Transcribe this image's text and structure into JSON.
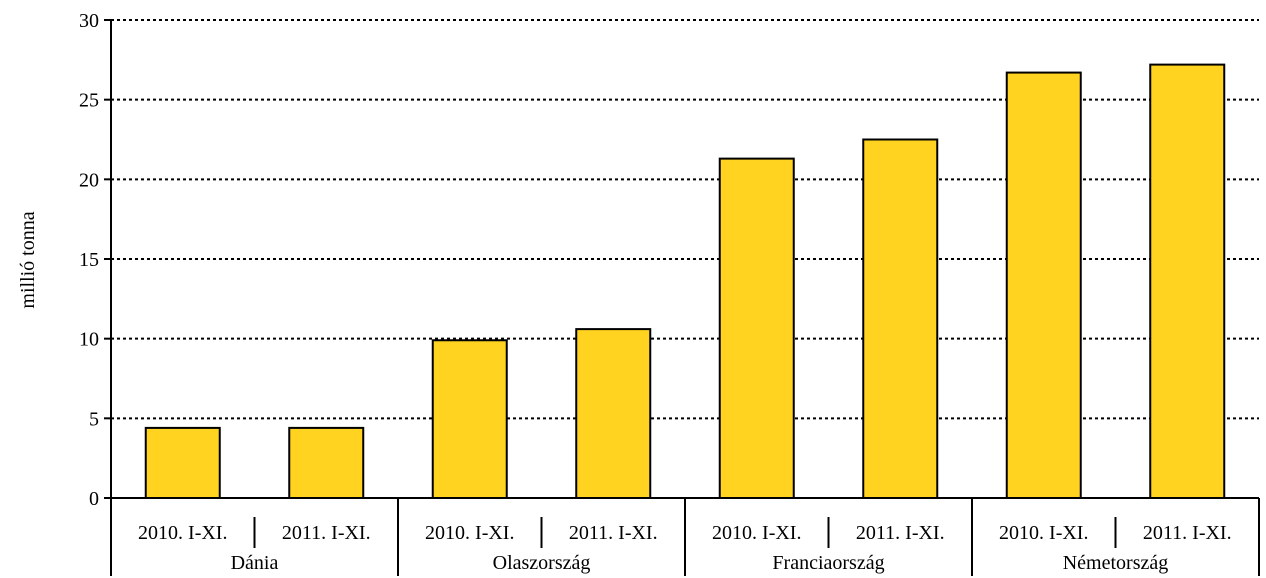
{
  "chart_data": {
    "type": "bar",
    "ylabel": "millió tonna",
    "ylim": [
      0,
      30
    ],
    "yticks": [
      0,
      5,
      10,
      15,
      20,
      25,
      30
    ],
    "grid": "horizontal-dotted",
    "bar_color": "#FFD320",
    "groups": [
      {
        "name": "Dánia",
        "categories": [
          "2010. I-XI.",
          "2011. I-XI."
        ],
        "values": [
          4.4,
          4.4
        ]
      },
      {
        "name": "Olaszország",
        "categories": [
          "2010. I-XI.",
          "2011. I-XI."
        ],
        "values": [
          9.9,
          10.6
        ]
      },
      {
        "name": "Franciaország",
        "categories": [
          "2010. I-XI.",
          "2011. I-XI."
        ],
        "values": [
          21.3,
          22.5
        ]
      },
      {
        "name": "Németország",
        "categories": [
          "2010. I-XI.",
          "2011. I-XI."
        ],
        "values": [
          26.7,
          27.2
        ]
      }
    ]
  }
}
